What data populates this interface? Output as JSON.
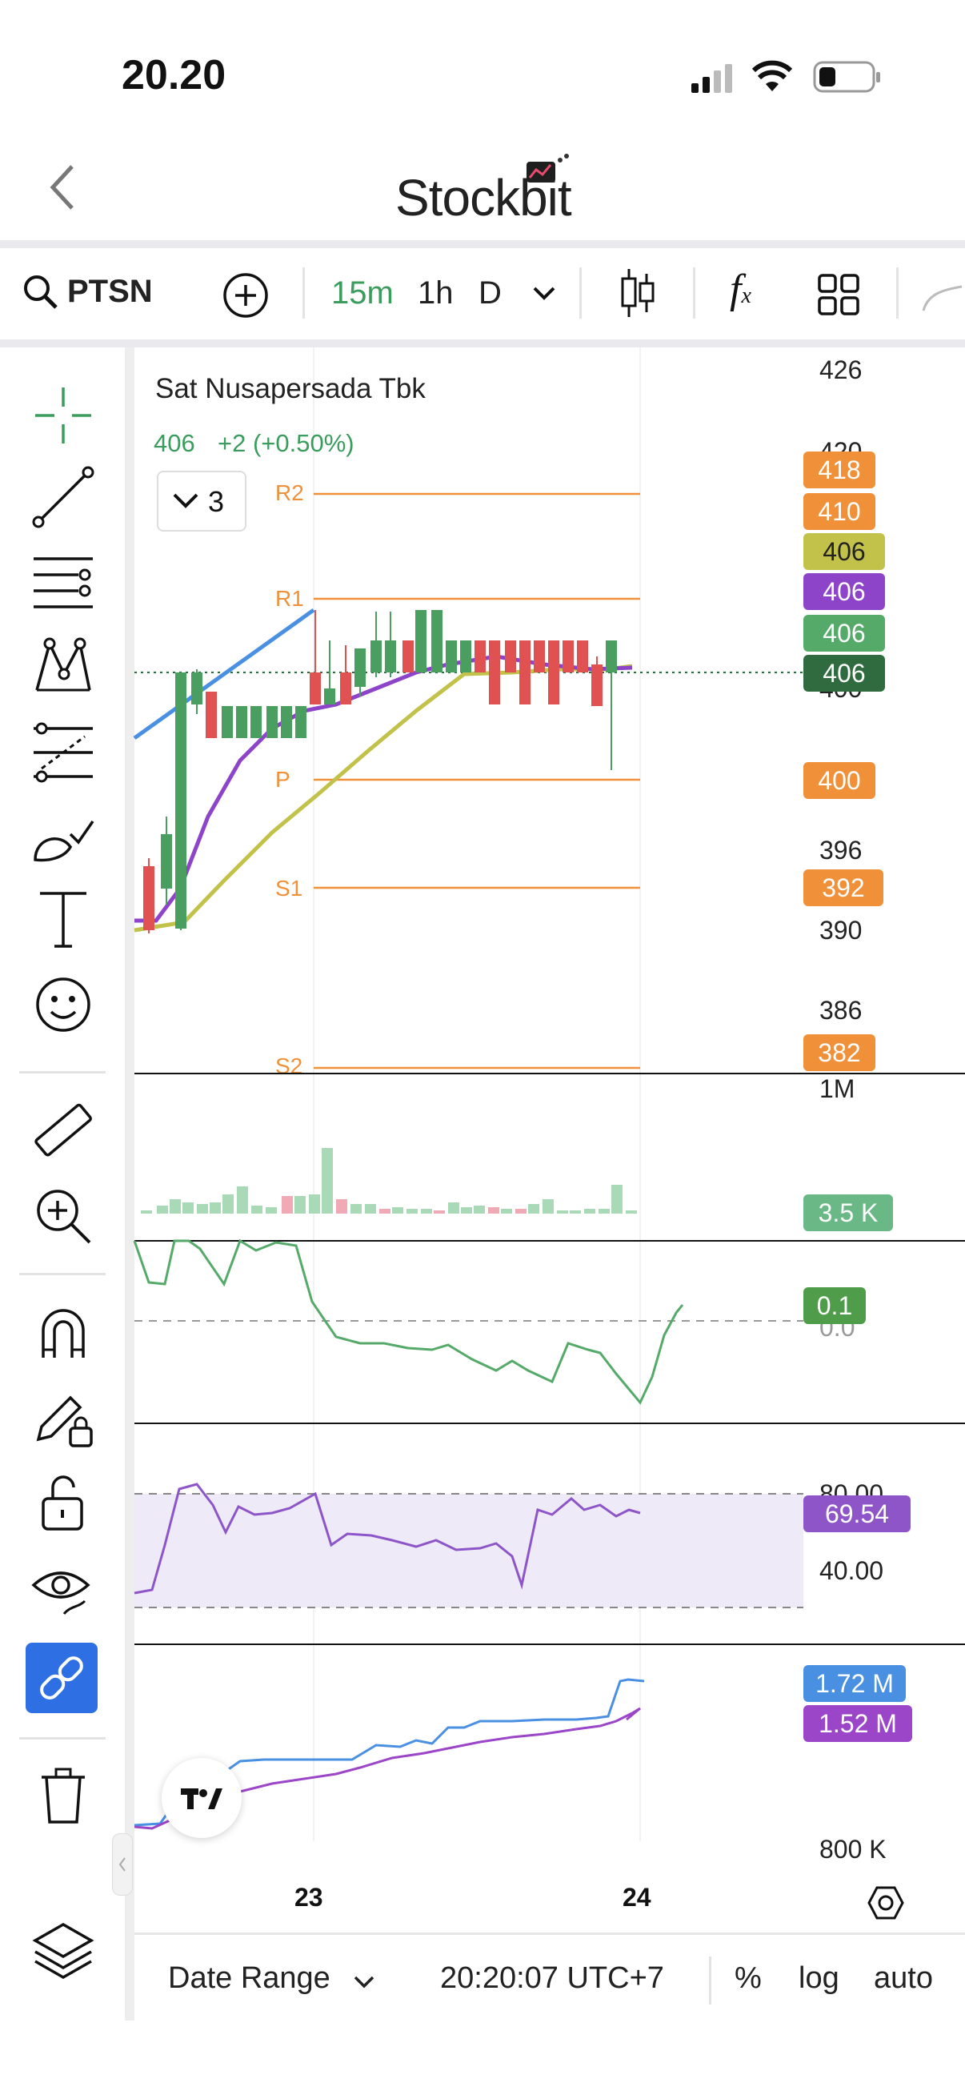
{
  "status_bar": {
    "time": "20.20"
  },
  "header": {
    "app_name": "Stockbit"
  },
  "toolbar": {
    "symbol": "PTSN",
    "intervals": [
      "15m",
      "1h",
      "D"
    ],
    "active_interval": "15m"
  },
  "chart": {
    "company_name": "Sat Nusapersada Tbk",
    "quote": "406",
    "change": "+2 (+0.50%)",
    "layers_count": "3",
    "pivot_labels": [
      "R2",
      "R1",
      "P",
      "S1",
      "S2"
    ],
    "price_axis": [
      "426",
      "420",
      "400",
      "396",
      "390",
      "386"
    ],
    "price_tags": [
      {
        "value": "418",
        "color": "#f0913a"
      },
      {
        "value": "410",
        "color": "#f0913a"
      },
      {
        "value": "406",
        "color": "#c2c24a"
      },
      {
        "value": "406",
        "color": "#8e44c9"
      },
      {
        "value": "406",
        "color": "#55aa6a"
      },
      {
        "value": "406",
        "color": "#2f6b3e"
      },
      {
        "value": "400",
        "color": "#f0913a"
      },
      {
        "value": "392",
        "color": "#f0913a"
      },
      {
        "value": "382",
        "color": "#f0913a"
      }
    ],
    "volume_axis": "1M",
    "volume_tag": "3.5 K",
    "osc_tag": "0.1",
    "osc_axis": "0.0",
    "rsi_axis": [
      "80.00",
      "40.00"
    ],
    "rsi_tag": "69.54",
    "obv_tags": [
      {
        "value": "1.72 M",
        "color": "#4a90e2"
      },
      {
        "value": "1.52 M",
        "color": "#9b45c8"
      }
    ],
    "obv_axis": "800 K",
    "time_axis": [
      "23",
      "24"
    ]
  },
  "bottom_bar": {
    "date_range": "Date Range",
    "clock": "20:20:07 UTC+7",
    "percent": "%",
    "log": "log",
    "auto": "auto"
  },
  "colors": {
    "accent_green": "#3a9d5d",
    "pivot_orange": "#f0913a",
    "link_blue": "#2f6fe4"
  }
}
